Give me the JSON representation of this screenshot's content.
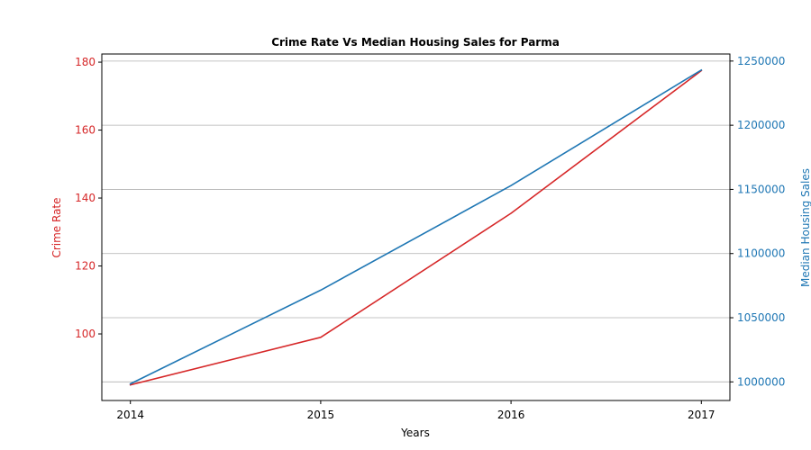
{
  "chart_data": {
    "type": "line",
    "title": "Crime Rate Vs Median Housing Sales for Parma",
    "xlabel": "Years",
    "x": [
      2014,
      2015,
      2016,
      2017
    ],
    "x_tick_labels": [
      "2014",
      "2015",
      "2016",
      "2017"
    ],
    "series": [
      {
        "name": "Crime Rate",
        "axis": "left",
        "color": "#d62728",
        "values": [
          85,
          99,
          135.5,
          177.5
        ]
      },
      {
        "name": "Median Housing Sales",
        "axis": "right",
        "color": "#1f77b4",
        "values": [
          998500,
          1071500,
          1153000,
          1243000
        ]
      }
    ],
    "y_left": {
      "label": "Crime Rate",
      "color": "#d62728",
      "ticks": [
        100,
        120,
        140,
        160,
        180
      ],
      "tick_labels": [
        "100",
        "120",
        "140",
        "160",
        "180"
      ],
      "range": [
        80.4,
        182.4
      ]
    },
    "y_right": {
      "label": "Median Housing Sales",
      "color": "#1f77b4",
      "ticks": [
        1000000,
        1050000,
        1100000,
        1150000,
        1200000,
        1250000
      ],
      "tick_labels": [
        "1000000",
        "1050000",
        "1100000",
        "1150000",
        "1200000",
        "1250000"
      ],
      "range": [
        985500,
        1255500
      ]
    },
    "grid": "horizontal (right axis ticks)",
    "legend": "none"
  }
}
